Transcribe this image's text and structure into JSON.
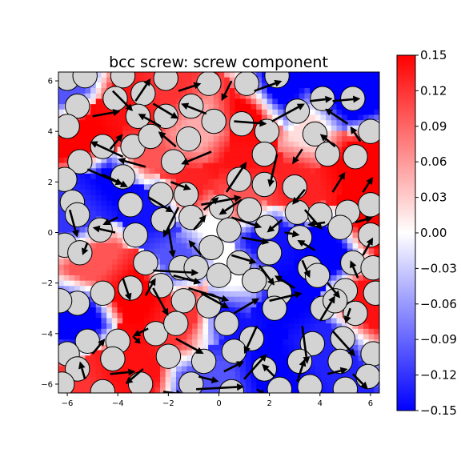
{
  "chart_data": {
    "type": "heatmap",
    "title": "bcc screw: screw component",
    "xlabel": "",
    "ylabel": "",
    "xlim": [
      -6.35,
      6.35
    ],
    "ylim": [
      -6.35,
      6.35
    ],
    "xticks": [
      -6,
      -4,
      -2,
      0,
      2,
      4,
      6
    ],
    "yticks": [
      -6,
      -4,
      -2,
      0,
      2,
      4,
      6
    ],
    "xtick_labels": [
      "−6",
      "−4",
      "−2",
      "0",
      "2",
      "4",
      "6"
    ],
    "ytick_labels": [
      "−6",
      "−4",
      "−2",
      "0",
      "2",
      "4",
      "6"
    ],
    "colorbar": {
      "range": [
        -0.15,
        0.15
      ],
      "ticks": [
        0.15,
        0.12,
        0.09,
        0.06,
        0.03,
        0.0,
        -0.03,
        -0.06,
        -0.09,
        -0.12,
        -0.15
      ],
      "tick_labels": [
        "0.15",
        "0.12",
        "0.09",
        "0.06",
        "0.03",
        "0.00",
        "−0.03",
        "−0.06",
        "−0.09",
        "−0.12",
        "−0.15"
      ],
      "colormap": [
        "#0000ff",
        "#ffffff",
        "#ff0000"
      ]
    },
    "field_regions": [
      {
        "x": -5.2,
        "y": 3.9,
        "v": 0.15
      },
      {
        "x": -4.1,
        "y": 2.0,
        "v": -0.15
      },
      {
        "x": -3.6,
        "y": 4.9,
        "v": 0.14
      },
      {
        "x": -2.0,
        "y": 5.6,
        "v": 0.12
      },
      {
        "x": -2.6,
        "y": 0.9,
        "v": -0.14
      },
      {
        "x": -1.2,
        "y": 1.6,
        "v": 0.13
      },
      {
        "x": -0.7,
        "y": 4.2,
        "v": 0.05
      },
      {
        "x": 1.2,
        "y": 4.6,
        "v": 0.15
      },
      {
        "x": 2.4,
        "y": 5.6,
        "v": -0.15
      },
      {
        "x": 5.1,
        "y": 5.2,
        "v": -0.15
      },
      {
        "x": 5.4,
        "y": 2.9,
        "v": 0.15
      },
      {
        "x": 3.1,
        "y": 2.0,
        "v": 0.13
      },
      {
        "x": 1.0,
        "y": 1.3,
        "v": 0.1
      },
      {
        "x": 1.8,
        "y": -0.3,
        "v": -0.14
      },
      {
        "x": 4.3,
        "y": -0.8,
        "v": -0.15
      },
      {
        "x": 5.7,
        "y": -2.8,
        "v": 0.14
      },
      {
        "x": 4.3,
        "y": -4.4,
        "v": -0.13
      },
      {
        "x": 2.0,
        "y": -5.5,
        "v": -0.15
      },
      {
        "x": 0.2,
        "y": -3.4,
        "v": -0.14
      },
      {
        "x": 0.4,
        "y": -1.8,
        "v": 0.0
      },
      {
        "x": -1.1,
        "y": -3.3,
        "v": 0.12
      },
      {
        "x": -3.3,
        "y": -2.4,
        "v": 0.15
      },
      {
        "x": -3.9,
        "y": -5.3,
        "v": 0.14
      },
      {
        "x": -5.6,
        "y": -3.6,
        "v": -0.15
      },
      {
        "x": -5.6,
        "y": -5.9,
        "v": 0.12
      },
      {
        "x": -4.9,
        "y": -1.0,
        "v": 0.1
      },
      {
        "x": -5.6,
        "y": 0.6,
        "v": -0.12
      },
      {
        "x": -1.6,
        "y": -1.0,
        "v": -0.1
      },
      {
        "x": 2.8,
        "y": -2.6,
        "v": -0.15
      },
      {
        "x": 0.9,
        "y": 3.0,
        "v": 0.14
      },
      {
        "x": -3.0,
        "y": 3.0,
        "v": 0.1
      },
      {
        "x": -0.3,
        "y": 0.3,
        "v": 0.0
      },
      {
        "x": 3.7,
        "y": 4.0,
        "v": 0.02
      },
      {
        "x": 6.1,
        "y": 0.4,
        "v": 0.15
      },
      {
        "x": -6.1,
        "y": 5.8,
        "v": -0.1
      },
      {
        "x": 0.0,
        "y": -5.9,
        "v": -0.1
      }
    ],
    "atoms": [
      [
        -6.0,
        6.1
      ],
      [
        -5.3,
        6.2
      ],
      [
        -3.8,
        6.2
      ],
      [
        -3.0,
        5.5
      ],
      [
        -2.1,
        6.1
      ],
      [
        -0.4,
        5.9
      ],
      [
        1.1,
        5.9
      ],
      [
        2.3,
        6.2
      ],
      [
        -5.6,
        5.0
      ],
      [
        -4.1,
        5.3
      ],
      [
        -3.2,
        4.6
      ],
      [
        -2.1,
        4.6
      ],
      [
        -1.1,
        5.0
      ],
      [
        -0.2,
        4.4
      ],
      [
        0.9,
        4.3
      ],
      [
        1.9,
        4.0
      ],
      [
        3.1,
        4.8
      ],
      [
        4.1,
        5.3
      ],
      [
        5.3,
        5.3
      ],
      [
        -6.0,
        4.2
      ],
      [
        -4.6,
        3.4
      ],
      [
        -3.4,
        3.4
      ],
      [
        -1.2,
        3.7
      ],
      [
        1.8,
        3.1
      ],
      [
        3.8,
        3.9
      ],
      [
        4.3,
        3.1
      ],
      [
        5.4,
        3.0
      ],
      [
        6.0,
        4.0
      ],
      [
        -5.5,
        2.8
      ],
      [
        -6.1,
        2.1
      ],
      [
        -3.8,
        2.2
      ],
      [
        -1.8,
        2.8
      ],
      [
        0.8,
        2.1
      ],
      [
        1.8,
        1.9
      ],
      [
        3.0,
        1.8
      ],
      [
        -5.8,
        1.2
      ],
      [
        -3.5,
        1.1
      ],
      [
        -2.3,
        1.5
      ],
      [
        -1.3,
        1.5
      ],
      [
        0.1,
        1.0
      ],
      [
        1.2,
        0.9
      ],
      [
        3.1,
        0.8
      ],
      [
        4.0,
        0.7
      ],
      [
        5.1,
        0.8
      ],
      [
        6.0,
        1.1
      ],
      [
        -5.6,
        0.7
      ],
      [
        -4.7,
        0.1
      ],
      [
        -3.3,
        -0.1
      ],
      [
        -2.2,
        0.5
      ],
      [
        -1.1,
        0.6
      ],
      [
        0.4,
        0.1
      ],
      [
        1.9,
        0.2
      ],
      [
        3.2,
        -0.2
      ],
      [
        4.8,
        0.2
      ],
      [
        6.0,
        -0.1
      ],
      [
        -6.1,
        -0.5
      ],
      [
        -5.5,
        -0.8
      ],
      [
        -2.9,
        -1.2
      ],
      [
        -1.5,
        -1.4
      ],
      [
        -0.3,
        -0.6
      ],
      [
        0.8,
        -1.2
      ],
      [
        1.9,
        -1.8
      ],
      [
        3.6,
        -1.4
      ],
      [
        5.3,
        -1.2
      ],
      [
        6.1,
        -1.4
      ],
      [
        -4.6,
        -2.4
      ],
      [
        -3.5,
        -2.2
      ],
      [
        -2.3,
        -2.1
      ],
      [
        -0.9,
        -1.4
      ],
      [
        0.0,
        -1.7
      ],
      [
        1.4,
        -1.9
      ],
      [
        2.4,
        -2.4
      ],
      [
        3.9,
        -1.7
      ],
      [
        5.0,
        -2.3
      ],
      [
        6.2,
        -2.4
      ],
      [
        -5.6,
        -2.8
      ],
      [
        -1.4,
        -2.7
      ],
      [
        -0.4,
        -2.9
      ],
      [
        0.3,
        -3.6
      ],
      [
        2.2,
        -3.0
      ],
      [
        4.1,
        -3.0
      ],
      [
        5.4,
        -3.2
      ],
      [
        -6.3,
        -2.7
      ],
      [
        -5.2,
        -4.3
      ],
      [
        -4.0,
        -4.3
      ],
      [
        -2.5,
        -4.0
      ],
      [
        -1.7,
        -3.6
      ],
      [
        1.3,
        -4.2
      ],
      [
        3.7,
        -4.4
      ],
      [
        4.9,
        -4.2
      ],
      [
        6.1,
        -4.8
      ],
      [
        -6.0,
        -4.8
      ],
      [
        -5.6,
        -5.4
      ],
      [
        -4.2,
        -5.0
      ],
      [
        -2.0,
        -4.9
      ],
      [
        -0.6,
        -5.1
      ],
      [
        0.6,
        -4.7
      ],
      [
        1.8,
        -5.4
      ],
      [
        3.2,
        -5.1
      ],
      [
        4.8,
        -5.1
      ],
      [
        -6.2,
        -6.0
      ],
      [
        -4.6,
        -6.3
      ],
      [
        -3.1,
        -6.0
      ],
      [
        -1.1,
        -6.0
      ],
      [
        0.5,
        -6.3
      ],
      [
        2.4,
        -6.2
      ],
      [
        3.6,
        -6.1
      ],
      [
        5.0,
        -6.2
      ],
      [
        5.9,
        -5.7
      ],
      [
        -2.7,
        3.8
      ],
      [
        2.0,
        -0.8
      ],
      [
        4.6,
        -2.7
      ]
    ],
    "arrows": [
      [
        -5.0,
        4.6,
        1.1,
        0.2
      ],
      [
        -4.2,
        5.6,
        0.8,
        -0.8
      ],
      [
        -3.3,
        5.2,
        0.6,
        0.9
      ],
      [
        -2.6,
        5.1,
        1.0,
        -0.6
      ],
      [
        -1.6,
        5.6,
        0.9,
        0.3
      ],
      [
        0.5,
        6.0,
        -0.4,
        -0.8
      ],
      [
        1.4,
        5.6,
        1.1,
        0.4
      ],
      [
        -0.5,
        4.7,
        -1.0,
        0.4
      ],
      [
        0.6,
        4.4,
        1.3,
        -0.1
      ],
      [
        2.1,
        4.4,
        1.3,
        0.7
      ],
      [
        3.6,
        5.2,
        0.9,
        0.1
      ],
      [
        4.5,
        5.2,
        1.1,
        0.1
      ],
      [
        5.1,
        4.3,
        -0.9,
        0.6
      ],
      [
        -2.3,
        4.2,
        -0.9,
        0.5
      ],
      [
        -4.3,
        3.3,
        0.5,
        0.6
      ],
      [
        -3.8,
        3.0,
        -1.3,
        0.6
      ],
      [
        -2.9,
        2.6,
        -1.1,
        0.3
      ],
      [
        -1.7,
        3.4,
        -0.7,
        0.6
      ],
      [
        -0.3,
        3.2,
        -1.2,
        -0.5
      ],
      [
        2.3,
        3.1,
        -0.3,
        -1.3
      ],
      [
        3.3,
        3.3,
        -0.4,
        -0.6
      ],
      [
        4.6,
        3.4,
        -0.6,
        0.5
      ],
      [
        5.6,
        3.6,
        -0.4,
        0.6
      ],
      [
        -5.2,
        2.5,
        1.4,
        -0.6
      ],
      [
        -4.6,
        2.3,
        1.0,
        -0.5
      ],
      [
        -1.9,
        2.0,
        0.8,
        -0.3
      ],
      [
        -0.7,
        1.1,
        1.6,
        0.3
      ],
      [
        0.3,
        1.6,
        0.8,
        1.2
      ],
      [
        0.9,
        1.3,
        -0.9,
        -0.6
      ],
      [
        3.4,
        1.7,
        -0.5,
        -0.6
      ],
      [
        4.5,
        1.6,
        0.5,
        0.8
      ],
      [
        5.7,
        1.6,
        0.4,
        0.6
      ],
      [
        -5.9,
        0.9,
        0.3,
        -1.1
      ],
      [
        -4.0,
        0.6,
        -0.6,
        -0.3
      ],
      [
        -2.8,
        1.4,
        1.0,
        -0.6
      ],
      [
        -1.6,
        1.0,
        -0.6,
        -1.2
      ],
      [
        -0.6,
        0.9,
        0.6,
        0.5
      ],
      [
        0.5,
        0.6,
        1.2,
        -0.4
      ],
      [
        2.5,
        0.5,
        -0.6,
        -0.5
      ],
      [
        3.4,
        0.9,
        0.7,
        -0.8
      ],
      [
        4.2,
        0.4,
        -0.7,
        -0.1
      ],
      [
        5.4,
        0.4,
        0.7,
        0.2
      ],
      [
        -5.2,
        -0.4,
        -0.2,
        -0.5
      ],
      [
        -4.1,
        0.0,
        -0.9,
        0.2
      ],
      [
        -2.0,
        0.2,
        0.2,
        -1.2
      ],
      [
        -1.0,
        0.1,
        0.5,
        0.6
      ],
      [
        0.9,
        -0.2,
        1.1,
        -0.2
      ],
      [
        2.6,
        0.0,
        0.6,
        -0.1
      ],
      [
        3.8,
        -0.7,
        -0.7,
        0.4
      ],
      [
        5.7,
        -0.9,
        0.4,
        0.7
      ],
      [
        -2.6,
        -1.5,
        1.8,
        -0.1
      ],
      [
        -1.8,
        -1.7,
        1.1,
        -0.3
      ],
      [
        -0.7,
        -0.9,
        -0.5,
        0.6
      ],
      [
        0.5,
        -0.9,
        1.0,
        -0.3
      ],
      [
        1.6,
        -1.3,
        0.6,
        -0.8
      ],
      [
        3.3,
        -1.1,
        0.3,
        -0.7
      ],
      [
        4.3,
        -2.0,
        0.5,
        -0.6
      ],
      [
        5.5,
        -1.8,
        -0.3,
        0.7
      ],
      [
        -3.8,
        -1.8,
        0.3,
        -0.9
      ],
      [
        -2.9,
        -2.5,
        0.4,
        0.7
      ],
      [
        -2.6,
        -2.2,
        0.6,
        -1.1
      ],
      [
        -1.2,
        -2.2,
        1.6,
        -0.5
      ],
      [
        -0.7,
        -2.4,
        1.1,
        -0.6
      ],
      [
        0.6,
        -3.2,
        1.0,
        0.6
      ],
      [
        2.0,
        -2.7,
        1.3,
        0.3
      ],
      [
        3.0,
        -2.2,
        -0.8,
        0.5
      ],
      [
        4.0,
        -3.5,
        0.6,
        1.0
      ],
      [
        5.2,
        -3.0,
        -0.2,
        -0.6
      ],
      [
        -5.0,
        -4.8,
        0.5,
        0.6
      ],
      [
        -3.4,
        -4.1,
        0.3,
        -0.3
      ],
      [
        -2.8,
        -3.8,
        -0.6,
        -0.3
      ],
      [
        -1.7,
        -4.2,
        1.1,
        -0.6
      ],
      [
        1.5,
        -3.7,
        -0.5,
        -1.1
      ],
      [
        3.3,
        -3.7,
        0.2,
        -1.5
      ],
      [
        4.5,
        -3.9,
        0.9,
        -1.0
      ],
      [
        -5.3,
        -5.8,
        -0.2,
        0.7
      ],
      [
        -4.3,
        -5.6,
        1.0,
        0.1
      ],
      [
        -3.0,
        -5.4,
        -0.7,
        -0.6
      ],
      [
        -0.8,
        -5.7,
        0.8,
        -0.2
      ],
      [
        0.2,
        -5.5,
        0.8,
        0.4
      ],
      [
        1.0,
        -5.8,
        0.9,
        1.0
      ],
      [
        2.2,
        -5.7,
        -0.5,
        0.5
      ],
      [
        3.1,
        -5.9,
        0.3,
        0.9
      ],
      [
        4.3,
        -5.6,
        0.8,
        0.2
      ],
      [
        -0.9,
        -6.2,
        1.9,
        0.1
      ],
      [
        -2.2,
        -6.3,
        0.8,
        -0.1
      ],
      [
        1.5,
        -6.2,
        0.3,
        -0.2
      ],
      [
        5.3,
        -5.6,
        0.6,
        -0.6
      ]
    ]
  }
}
